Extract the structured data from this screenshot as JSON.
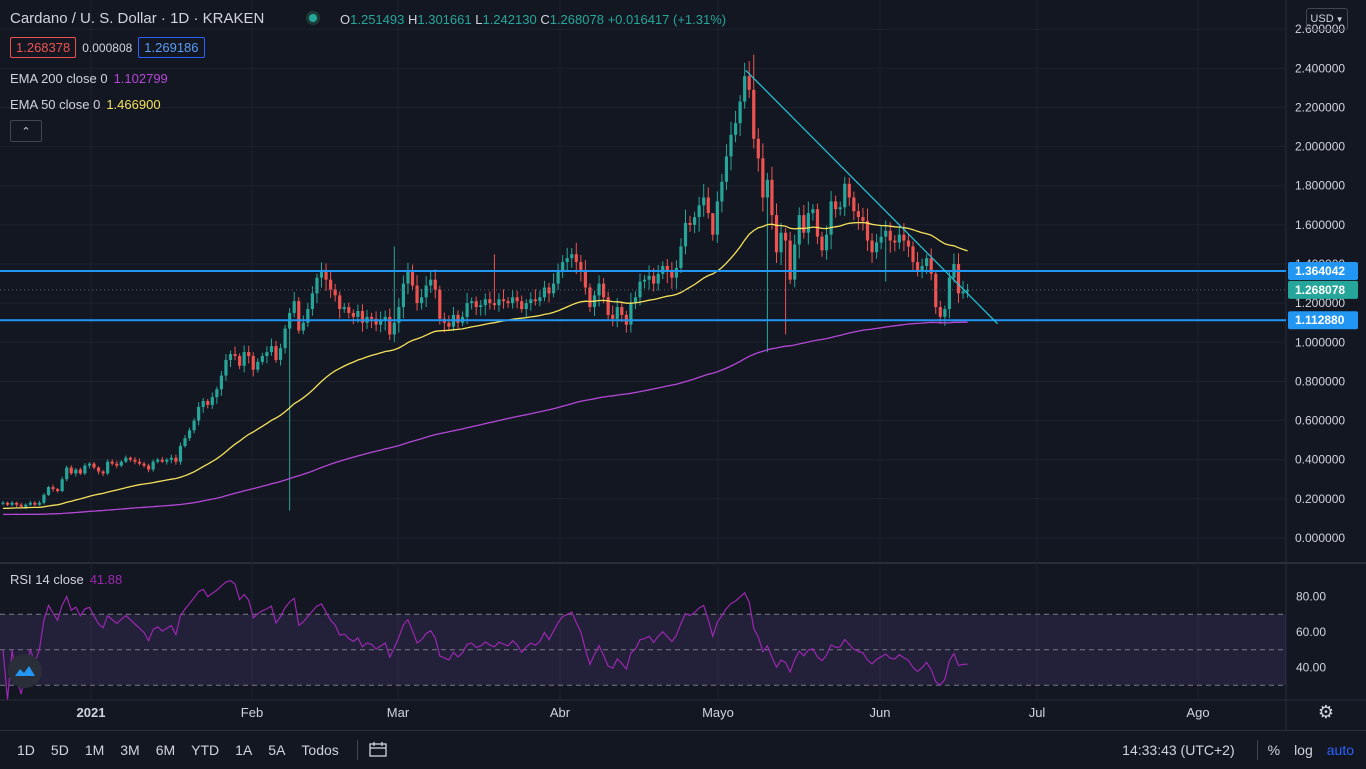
{
  "header": {
    "symbol": "Cardano / U. S. Dollar",
    "interval": "1D",
    "exchange": "KRAKEN",
    "ohlc": {
      "o_label": "O",
      "o": "1.251493",
      "h_label": "H",
      "h": "1.301661",
      "l_label": "L",
      "l": "1.242130",
      "c_label": "C",
      "c": "1.268078",
      "change": "+0.016417 (+1.31%)"
    },
    "bid": "1.268378",
    "spread": "0.000808",
    "ask": "1.269186",
    "currency": "USD"
  },
  "indicators": {
    "ema200_label": "EMA 200 close 0",
    "ema200_value": "1.102799",
    "ema50_label": "EMA 50 close 0",
    "ema50_value": "1.466900",
    "rsi_label": "RSI 14 close",
    "rsi_value": "41.88"
  },
  "price_labels": {
    "upper_line": "1.364042",
    "last": "1.268078",
    "lower_line": "1.112880"
  },
  "bottom_bar": {
    "timeframes": [
      "1D",
      "5D",
      "1M",
      "3M",
      "6M",
      "YTD",
      "1A",
      "5A",
      "Todos"
    ],
    "clock": "14:33:43 (UTC+2)",
    "percent": "%",
    "log": "log",
    "auto": "auto"
  },
  "colors": {
    "background": "#131722",
    "up": "#26a69a",
    "down": "#ef5350",
    "ema50": "#f5e15c",
    "ema200": "#b447d6",
    "hline": "#2196f3",
    "trend": "#26c6da",
    "rsi": "#9c27b0"
  },
  "chart_data": [
    {
      "type": "candlestick",
      "title": "Cardano / U. S. Dollar, 1D, KRAKEN",
      "x_ticks": [
        "2021",
        "Feb",
        "Mar",
        "Abr",
        "Mayo",
        "Jun",
        "Jul",
        "Ago"
      ],
      "y_ticks": [
        "2.600000",
        "2.400000",
        "2.200000",
        "2.000000",
        "1.800000",
        "1.600000",
        "1.400000",
        "1.200000",
        "1.000000",
        "0.800000",
        "0.600000",
        "0.400000",
        "0.200000",
        "0.000000"
      ],
      "ylim": [
        -0.1,
        2.62
      ],
      "closes": [
        0.18,
        0.17,
        0.18,
        0.17,
        0.16,
        0.17,
        0.18,
        0.17,
        0.18,
        0.22,
        0.26,
        0.25,
        0.24,
        0.3,
        0.36,
        0.33,
        0.35,
        0.33,
        0.37,
        0.38,
        0.36,
        0.34,
        0.33,
        0.39,
        0.38,
        0.37,
        0.39,
        0.41,
        0.4,
        0.39,
        0.38,
        0.37,
        0.35,
        0.39,
        0.4,
        0.39,
        0.4,
        0.41,
        0.39,
        0.47,
        0.51,
        0.55,
        0.6,
        0.67,
        0.7,
        0.68,
        0.72,
        0.76,
        0.83,
        0.91,
        0.94,
        0.93,
        0.88,
        0.95,
        0.93,
        0.86,
        0.9,
        0.93,
        0.95,
        0.98,
        0.91,
        0.97,
        1.07,
        1.15,
        1.21,
        1.06,
        1.1,
        1.17,
        1.25,
        1.33,
        1.37,
        1.32,
        1.27,
        1.24,
        1.17,
        1.18,
        1.15,
        1.13,
        1.16,
        1.1,
        1.13,
        1.12,
        1.09,
        1.11,
        1.13,
        1.04,
        1.1,
        1.18,
        1.3,
        1.36,
        1.29,
        1.2,
        1.23,
        1.29,
        1.32,
        1.27,
        1.12,
        1.1,
        1.08,
        1.14,
        1.1,
        1.13,
        1.2,
        1.21,
        1.18,
        1.19,
        1.22,
        1.2,
        1.19,
        1.22,
        1.21,
        1.2,
        1.23,
        1.21,
        1.17,
        1.2,
        1.22,
        1.21,
        1.23,
        1.28,
        1.25,
        1.3,
        1.36,
        1.41,
        1.43,
        1.45,
        1.41,
        1.37,
        1.28,
        1.18,
        1.24,
        1.3,
        1.23,
        1.14,
        1.12,
        1.18,
        1.14,
        1.09,
        1.2,
        1.23,
        1.31,
        1.32,
        1.34,
        1.3,
        1.35,
        1.39,
        1.36,
        1.33,
        1.38,
        1.49,
        1.61,
        1.6,
        1.64,
        1.7,
        1.74,
        1.66,
        1.55,
        1.72,
        1.82,
        1.95,
        2.06,
        2.12,
        2.23,
        2.36,
        2.29,
        2.04,
        1.94,
        1.74,
        1.83,
        1.65,
        1.46,
        1.56,
        1.52,
        1.32,
        1.5,
        1.65,
        1.56,
        1.66,
        1.68,
        1.54,
        1.47,
        1.55,
        1.72,
        1.68,
        1.69,
        1.81,
        1.74,
        1.67,
        1.64,
        1.62,
        1.52,
        1.46,
        1.51,
        1.54,
        1.57,
        1.52,
        1.51,
        1.55,
        1.52,
        1.49,
        1.41,
        1.36,
        1.39,
        1.43,
        1.35,
        1.18,
        1.13,
        1.17,
        1.33,
        1.4,
        1.25,
        1.26,
        1.268078
      ],
      "series": [
        {
          "name": "EMA 200 close 0",
          "last": 1.102799,
          "color": "#b447d6"
        },
        {
          "name": "EMA 50 close 0",
          "last": 1.4669,
          "color": "#f5e15c"
        }
      ],
      "horizontal_levels": [
        1.364042,
        1.11288
      ],
      "trendline": {
        "from": [
          0.77,
          2.39
        ],
        "to": [
          1.0,
          1.12
        ]
      }
    },
    {
      "type": "line",
      "title": "RSI 14 close",
      "y_ticks": [
        "80.00",
        "60.00",
        "40.00"
      ],
      "ylim": [
        20,
        100
      ],
      "band": [
        30,
        70
      ],
      "midline": 50,
      "last": 41.88
    }
  ]
}
